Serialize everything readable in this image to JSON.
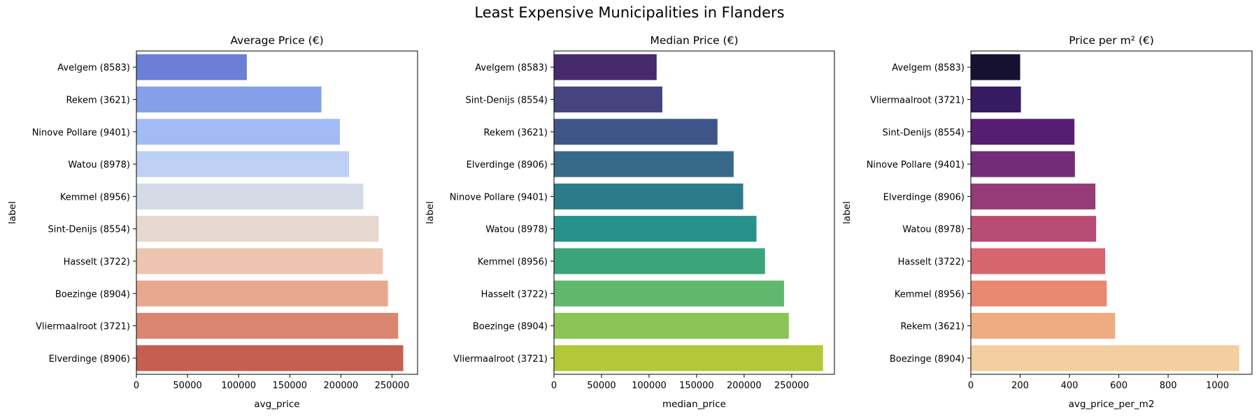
{
  "figure_title": "Least Expensive Municipalities in Flanders",
  "chart_data": [
    {
      "type": "bar",
      "orientation": "horizontal",
      "title": "Average Price (€)",
      "xlabel": "avg_price",
      "ylabel": "label",
      "xlim": [
        0,
        275000
      ],
      "xticks": [
        0,
        50000,
        100000,
        150000,
        200000,
        250000
      ],
      "categories": [
        "Avelgem (8583)",
        "Rekem (3621)",
        "Ninove Pollare (9401)",
        "Watou (8978)",
        "Kemmel (8956)",
        "Sint-Denijs (8554)",
        "Hasselt (3722)",
        "Boezinge (8904)",
        "Vliermaalroot (3721)",
        "Elverdinge (8906)"
      ],
      "values": [
        108000,
        181000,
        199000,
        208000,
        222000,
        237000,
        241000,
        246000,
        256000,
        261000
      ],
      "colors": [
        "#6b7fd6",
        "#85a0e6",
        "#a3bbf5",
        "#bed0f3",
        "#d5dbe6",
        "#e6d8cf",
        "#ecc4b0",
        "#e8a88f",
        "#da8670",
        "#c45f52"
      ]
    },
    {
      "type": "bar",
      "orientation": "horizontal",
      "title": "Median Price (€)",
      "xlabel": "median_price",
      "ylabel": "label",
      "xlim": [
        0,
        295000
      ],
      "xticks": [
        0,
        50000,
        100000,
        150000,
        200000,
        250000
      ],
      "categories": [
        "Avelgem (8583)",
        "Sint-Denijs (8554)",
        "Rekem (3621)",
        "Elverdinge (8906)",
        "Ninove Pollare (9401)",
        "Watou (8978)",
        "Kemmel (8956)",
        "Hasselt (3722)",
        "Boezinge (8904)",
        "Vliermaalroot (3721)"
      ],
      "values": [
        108000,
        114000,
        172000,
        189000,
        199000,
        213000,
        222000,
        242000,
        247000,
        283000
      ],
      "colors": [
        "#472a6b",
        "#46447f",
        "#3f5688",
        "#38698a",
        "#2c7b8a",
        "#28918a",
        "#3ca47b",
        "#61b76e",
        "#8ac556",
        "#b3c838"
      ]
    },
    {
      "type": "bar",
      "orientation": "horizontal",
      "title": "Price per m² (€)",
      "xlabel": "avg_price_per_m2",
      "ylabel": "label",
      "xlim": [
        0,
        1140
      ],
      "xticks": [
        0,
        200,
        400,
        600,
        800,
        1000
      ],
      "categories": [
        "Avelgem (8583)",
        "Vliermaalroot (3721)",
        "Sint-Denijs (8554)",
        "Ninove Pollare (9401)",
        "Elverdinge (8906)",
        "Watou (8978)",
        "Hasselt (3722)",
        "Kemmel (8956)",
        "Rekem (3621)",
        "Boezinge (8904)"
      ],
      "values": [
        200,
        203,
        420,
        422,
        505,
        508,
        545,
        551,
        585,
        1088
      ],
      "colors": [
        "#16112f",
        "#351b61",
        "#561e72",
        "#732c77",
        "#953c78",
        "#b94c74",
        "#d76570",
        "#e88870",
        "#efab80",
        "#f3cf9f"
      ]
    }
  ]
}
